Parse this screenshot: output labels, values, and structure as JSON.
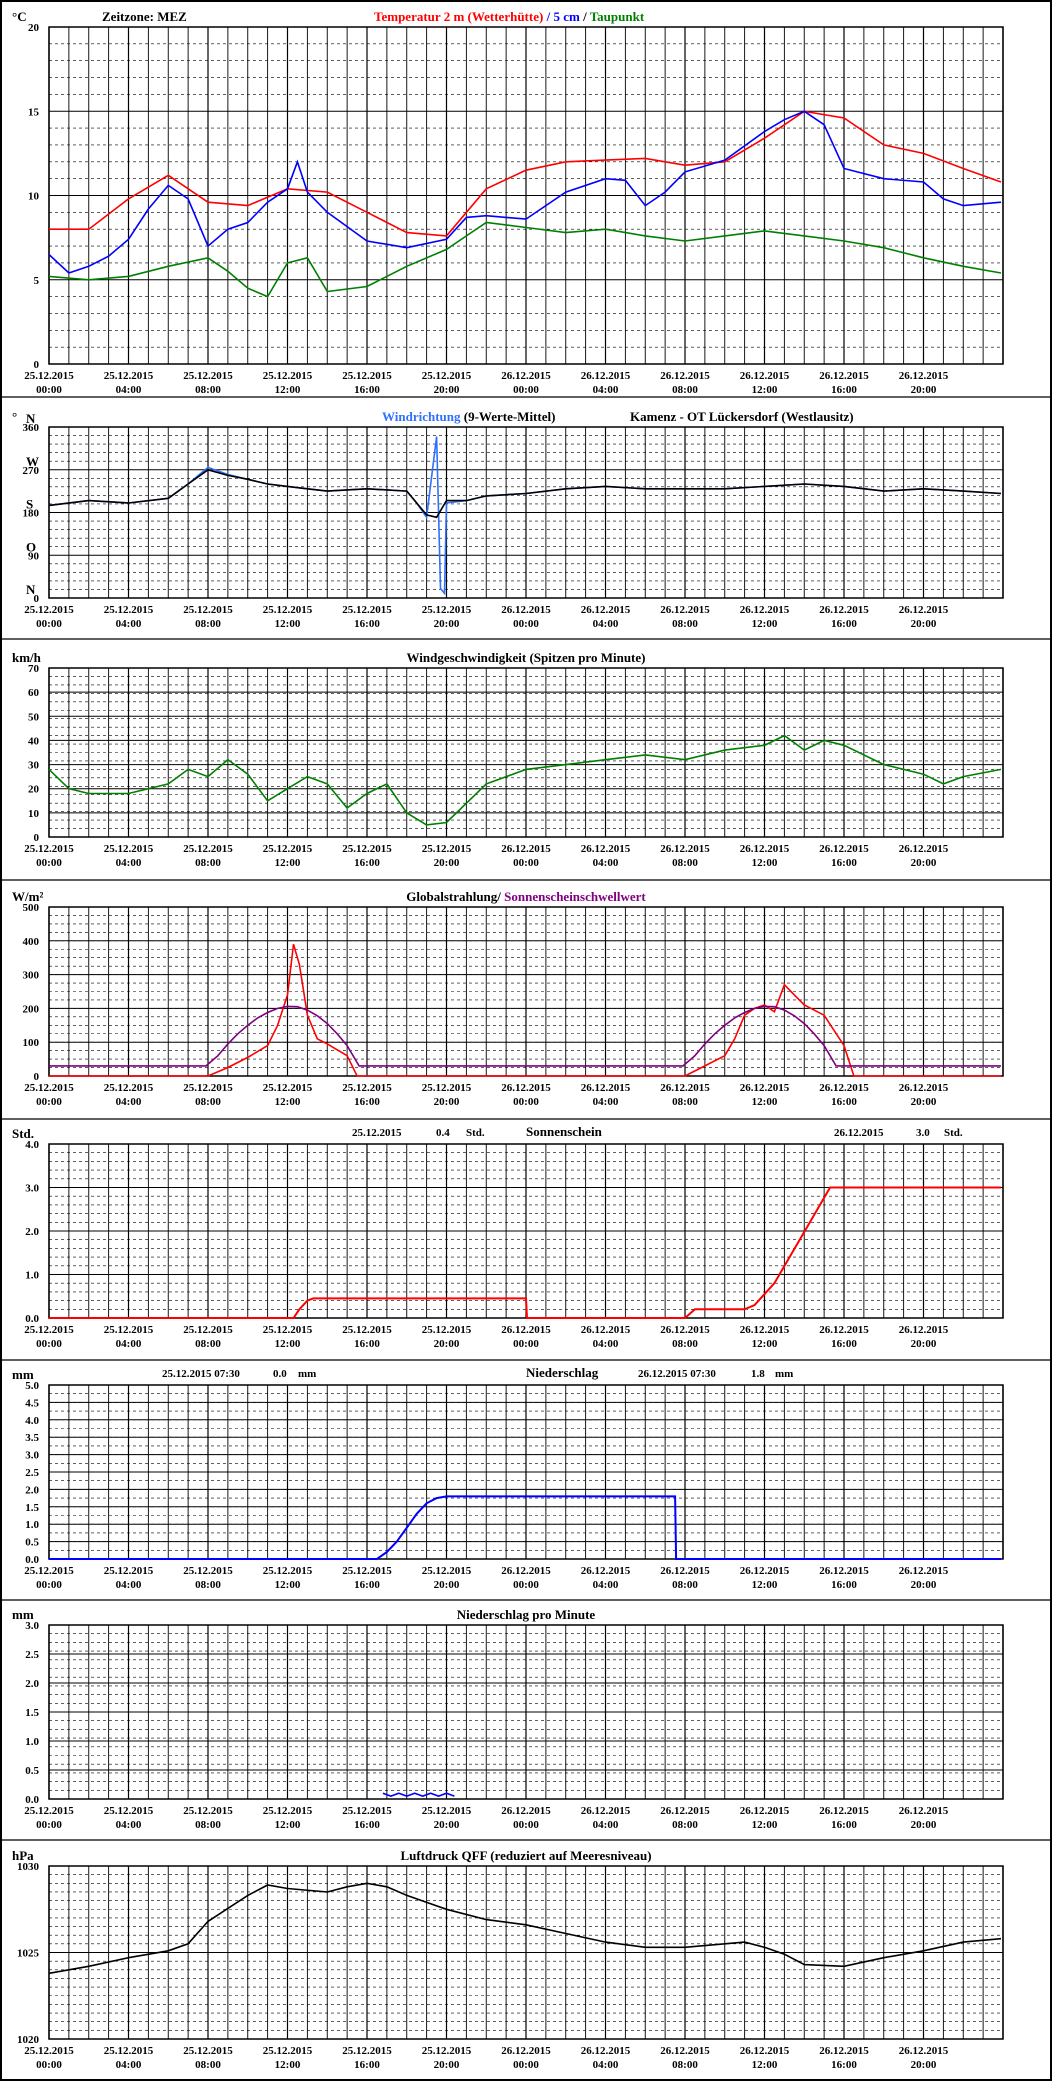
{
  "time_labels": [
    [
      "25.12.2015",
      "00:00"
    ],
    [
      "25.12.2015",
      "04:00"
    ],
    [
      "25.12.2015",
      "08:00"
    ],
    [
      "25.12.2015",
      "12:00"
    ],
    [
      "25.12.2015",
      "16:00"
    ],
    [
      "25.12.2015",
      "20:00"
    ],
    [
      "26.12.2015",
      "00:00"
    ],
    [
      "26.12.2015",
      "04:00"
    ],
    [
      "26.12.2015",
      "08:00"
    ],
    [
      "26.12.2015",
      "12:00"
    ],
    [
      "26.12.2015",
      "16:00"
    ],
    [
      "26.12.2015",
      "20:00"
    ]
  ],
  "colors": {
    "red": "#ff0000",
    "blue": "#0000ff",
    "green": "#008000",
    "purple": "#800080",
    "lightblue": "#3070ff",
    "black": "#000000"
  },
  "chart_data": [
    {
      "id": "temperature",
      "type": "line",
      "unit": "°C",
      "ylim": [
        0,
        20
      ],
      "y_ticks": [
        0,
        5,
        10,
        15,
        20
      ],
      "header": {
        "left": "Zeitzone: MEZ",
        "t1": "Temperatur 2 m (Wetterhütte)",
        "sep1": "  /  ",
        "t2": "5 cm",
        "sep2": " / ",
        "t3": "Taupunkt"
      },
      "series": [
        {
          "name": "Temperatur 2 m (Wetterhütte)",
          "color": "#ff0000",
          "x_hours": [
            0,
            2,
            4,
            6,
            8,
            10,
            12,
            14,
            16,
            18,
            20,
            22,
            24,
            26,
            28,
            30,
            32,
            34,
            36,
            38,
            40,
            42,
            44,
            46,
            47.9
          ],
          "values": [
            8,
            8,
            9.8,
            11.2,
            9.6,
            9.4,
            10.4,
            10.2,
            9,
            7.8,
            7.6,
            10.4,
            11.5,
            12,
            12.1,
            12.2,
            11.8,
            12,
            13.4,
            15,
            14.6,
            13,
            12.5,
            11.6,
            10.8
          ]
        },
        {
          "name": "5 cm",
          "color": "#0000ff",
          "x_hours": [
            0,
            1,
            2,
            3,
            4,
            5,
            6,
            7,
            8,
            9,
            10,
            11,
            12,
            12.5,
            13,
            14,
            16,
            18,
            20,
            21,
            22,
            24,
            26,
            28,
            29,
            30,
            31,
            32,
            34,
            36,
            37,
            38,
            39,
            40,
            42,
            44,
            45,
            46,
            47.9
          ],
          "values": [
            6.5,
            5.4,
            5.8,
            6.4,
            7.4,
            9.2,
            10.6,
            9.8,
            7,
            8,
            8.4,
            9.6,
            10.4,
            12,
            10.2,
            9,
            7.3,
            6.9,
            7.4,
            8.7,
            8.8,
            8.6,
            10.2,
            11,
            10.9,
            9.4,
            10.2,
            11.4,
            12.1,
            13.8,
            14.5,
            15,
            14.2,
            11.6,
            11,
            10.8,
            9.8,
            9.4,
            9.6
          ]
        },
        {
          "name": "Taupunkt",
          "color": "#008000",
          "x_hours": [
            0,
            2,
            4,
            6,
            8,
            9,
            10,
            11,
            12,
            13,
            14,
            16,
            18,
            20,
            21,
            22,
            24,
            26,
            28,
            30,
            32,
            34,
            36,
            38,
            40,
            42,
            44,
            46,
            47.9
          ],
          "values": [
            5.2,
            5,
            5.2,
            5.8,
            6.3,
            5.5,
            4.5,
            4,
            6,
            6.3,
            4.3,
            4.6,
            5.8,
            6.8,
            7.6,
            8.4,
            8.1,
            7.8,
            8,
            7.6,
            7.3,
            7.6,
            7.9,
            7.6,
            7.3,
            6.9,
            6.3,
            5.8,
            5.4
          ]
        }
      ]
    },
    {
      "id": "wind_direction",
      "type": "line",
      "unit": "°",
      "ylim": [
        0,
        360
      ],
      "y_ticks": [
        0,
        90,
        180,
        270,
        360
      ],
      "compass": [
        {
          "label": "N",
          "value": 360
        },
        {
          "label": "W",
          "value": 270
        },
        {
          "label": "S",
          "value": 180
        },
        {
          "label": "O",
          "value": 90
        },
        {
          "label": "N",
          "value": 0
        }
      ],
      "header": {
        "t1": "Windrichtung",
        "t2": " (9-Werte-Mittel)",
        "t3": "Kamenz - OT Lückersdorf (Westlausitz)"
      },
      "series": [
        {
          "name": "Windrichtung",
          "color": "#3070ff",
          "x_hours": [
            0,
            2,
            4,
            6,
            7,
            8,
            9,
            10,
            11,
            12,
            13,
            14,
            16,
            18,
            18.5,
            19,
            19.5,
            19.7,
            19.9,
            20,
            21,
            22,
            24,
            26,
            28,
            30,
            32,
            34,
            36,
            38,
            40,
            42,
            44,
            46,
            47.9
          ],
          "values": [
            195,
            205,
            200,
            210,
            240,
            275,
            260,
            250,
            240,
            235,
            230,
            225,
            230,
            225,
            200,
            170,
            340,
            20,
            10,
            200,
            205,
            215,
            220,
            230,
            235,
            230,
            230,
            230,
            235,
            240,
            235,
            225,
            230,
            225,
            220
          ]
        },
        {
          "name": "9-Werte-Mittel",
          "color": "#000000",
          "x_hours": [
            0,
            2,
            4,
            6,
            7,
            8,
            9,
            10,
            11,
            12,
            13,
            14,
            16,
            18,
            19,
            19.5,
            20,
            21,
            22,
            24,
            26,
            28,
            30,
            32,
            34,
            36,
            38,
            40,
            42,
            44,
            46,
            47.9
          ],
          "values": [
            195,
            205,
            200,
            210,
            240,
            270,
            258,
            250,
            240,
            235,
            230,
            225,
            230,
            225,
            175,
            170,
            205,
            205,
            215,
            220,
            230,
            235,
            230,
            230,
            230,
            235,
            240,
            235,
            225,
            230,
            225,
            220
          ]
        }
      ]
    },
    {
      "id": "wind_speed",
      "type": "line",
      "unit": "km/h",
      "ylim": [
        0,
        70
      ],
      "y_ticks": [
        0,
        10,
        20,
        30,
        40,
        50,
        60,
        70
      ],
      "header": {
        "t1": "Windgeschwindigkeit (Spitzen pro Minute)"
      },
      "series": [
        {
          "name": "Windgeschwindigkeit",
          "color": "#008000",
          "x_hours": [
            0,
            1,
            2,
            4,
            6,
            7,
            8,
            9,
            10,
            11,
            12,
            13,
            14,
            15,
            16,
            17,
            18,
            19,
            20,
            22,
            24,
            26,
            28,
            30,
            32,
            34,
            36,
            37,
            38,
            39,
            40,
            42,
            44,
            45,
            46,
            47.9
          ],
          "values": [
            28,
            20,
            18,
            18,
            22,
            28,
            25,
            32,
            26,
            15,
            20,
            25,
            22,
            12,
            18,
            22,
            10,
            5,
            6,
            22,
            28,
            30,
            32,
            34,
            32,
            36,
            38,
            42,
            36,
            40,
            38,
            30,
            26,
            22,
            25,
            28
          ]
        }
      ]
    },
    {
      "id": "radiation",
      "type": "line",
      "unit": "W/m²",
      "ylim": [
        0,
        500
      ],
      "y_ticks": [
        0,
        100,
        200,
        300,
        400,
        500
      ],
      "header": {
        "t1": "Globalstrahlung",
        "sep": "/ ",
        "t2": "Sonnenscheinschwellwert"
      },
      "series": [
        {
          "name": "Globalstrahlung",
          "color": "#ff0000",
          "x_hours": [
            0,
            8,
            9,
            10,
            11,
            11.5,
            12,
            12.3,
            12.6,
            13,
            13.5,
            14,
            15,
            15.5,
            24,
            32,
            33,
            34,
            34.5,
            35,
            35.5,
            36,
            36.5,
            37,
            37.5,
            38,
            39,
            40,
            40.5,
            47.9
          ],
          "values": [
            0,
            0,
            25,
            55,
            90,
            150,
            240,
            390,
            330,
            180,
            110,
            95,
            60,
            0,
            0,
            0,
            30,
            60,
            110,
            180,
            200,
            210,
            190,
            270,
            240,
            210,
            180,
            90,
            0,
            0
          ]
        },
        {
          "name": "Sonnenscheinschwellwert",
          "color": "#800080",
          "x_hours": [
            0,
            7.9,
            8.5,
            9,
            9.5,
            10,
            10.5,
            11,
            11.5,
            12,
            12.5,
            13,
            13.5,
            14,
            14.5,
            15,
            15.6,
            31.9,
            32.5,
            33,
            33.5,
            34,
            34.5,
            35,
            35.5,
            36,
            36.5,
            37,
            37.5,
            38,
            38.5,
            39,
            39.6,
            47.9
          ],
          "values": [
            30,
            30,
            60,
            95,
            125,
            150,
            172,
            188,
            200,
            206,
            205,
            195,
            178,
            155,
            125,
            90,
            30,
            30,
            60,
            95,
            125,
            150,
            172,
            188,
            200,
            206,
            205,
            195,
            178,
            155,
            125,
            90,
            30,
            30
          ]
        }
      ]
    },
    {
      "id": "sunshine",
      "type": "line",
      "unit": "Std.",
      "ylim": [
        0,
        4
      ],
      "y_ticks": [
        0,
        1,
        2,
        3,
        4
      ],
      "tick_decimals": 1,
      "header": {
        "d1": "25.12.2015",
        "v1": "0.4",
        "u1": "Std.",
        "t1": "Sonnenschein",
        "d2": "26.12.2015",
        "v2": "3.0",
        "u2": "Std."
      },
      "series": [
        {
          "name": "Sonnenschein",
          "color": "#ff0000",
          "x_hours": [
            0,
            12.3,
            12.6,
            13,
            13.3,
            24,
            24.05,
            32,
            32.5,
            35,
            35.5,
            36.5,
            39.3,
            47.9
          ],
          "values": [
            0,
            0,
            0.2,
            0.4,
            0.45,
            0.45,
            0,
            0,
            0.2,
            0.2,
            0.3,
            0.8,
            3.0,
            3.0
          ]
        }
      ]
    },
    {
      "id": "precipitation",
      "type": "line",
      "unit": "mm",
      "ylim": [
        0,
        5
      ],
      "y_ticks": [
        0,
        0.5,
        1,
        1.5,
        2,
        2.5,
        3,
        3.5,
        4,
        4.5,
        5
      ],
      "tick_decimals": 1,
      "header": {
        "d1": "25.12.2015 07:30",
        "v1": "0.0",
        "u1": "mm",
        "t1": "Niederschlag",
        "d2": "26.12.2015 07:30",
        "v2": "1.8",
        "u2": "mm"
      },
      "series": [
        {
          "name": "Niederschlag",
          "color": "#0000ff",
          "x_hours": [
            0,
            16.5,
            17,
            17.5,
            18,
            18.5,
            19,
            19.5,
            20,
            21,
            22,
            31.5,
            31.55,
            47.9
          ],
          "values": [
            0,
            0,
            0.2,
            0.5,
            0.9,
            1.3,
            1.6,
            1.75,
            1.8,
            1.8,
            1.8,
            1.8,
            0,
            0
          ]
        }
      ]
    },
    {
      "id": "precip_minute",
      "type": "line",
      "unit": "mm",
      "ylim": [
        0,
        3
      ],
      "y_ticks": [
        0,
        0.5,
        1,
        1.5,
        2,
        2.5,
        3
      ],
      "tick_decimals": 1,
      "header": {
        "t1": "Niederschlag pro Minute"
      },
      "series": [
        {
          "name": "Niederschlag pro Minute",
          "color": "#0000ff",
          "x_hours": [
            16.8,
            17.2,
            17.6,
            18,
            18.4,
            18.8,
            19.2,
            19.6,
            20,
            20.4
          ],
          "values": [
            0.1,
            0.05,
            0.1,
            0.05,
            0.1,
            0.05,
            0.1,
            0.05,
            0.1,
            0.05
          ]
        }
      ]
    },
    {
      "id": "pressure",
      "type": "line",
      "unit": "hPa",
      "ylim": [
        1020,
        1030
      ],
      "y_ticks": [
        1020,
        1025,
        1030
      ],
      "header": {
        "t1": "Luftdruck QFF (reduziert auf Meeresniveau)"
      },
      "series": [
        {
          "name": "Luftdruck QFF",
          "color": "#000000",
          "x_hours": [
            0,
            2,
            4,
            6,
            7,
            8,
            10,
            11,
            12,
            14,
            15,
            16,
            17,
            18,
            20,
            22,
            24,
            26,
            28,
            30,
            32,
            34,
            35,
            36,
            37,
            38,
            40,
            42,
            44,
            46,
            47.9
          ],
          "values": [
            1023.8,
            1024.2,
            1024.7,
            1025.1,
            1025.5,
            1026.8,
            1028.3,
            1028.9,
            1028.7,
            1028.5,
            1028.8,
            1029,
            1028.8,
            1028.3,
            1027.5,
            1026.9,
            1026.6,
            1026.1,
            1025.6,
            1025.3,
            1025.3,
            1025.5,
            1025.6,
            1025.3,
            1024.9,
            1024.3,
            1024.2,
            1024.7,
            1025.1,
            1025.6,
            1025.8
          ]
        }
      ]
    }
  ]
}
